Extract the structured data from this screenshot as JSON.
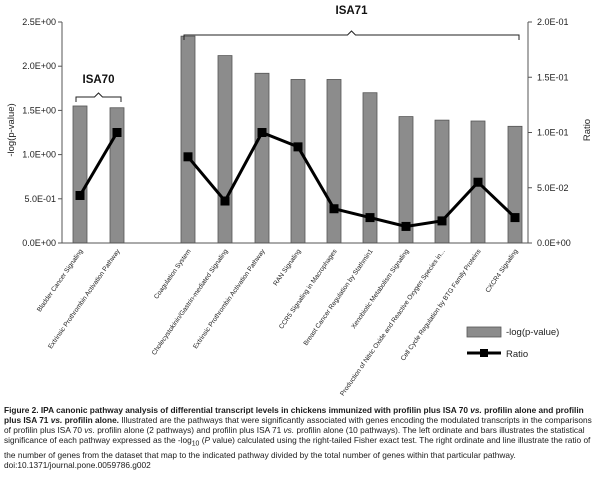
{
  "chart_data": {
    "type": "bar",
    "categories": [
      "Bladder Cancer Signaling",
      "Extrinsic Prothrombin Activation Pathway",
      "Coagulation System",
      "Cholecystokinin/Gastrin-mediated Signaling",
      "Extrinsic Prothrombin Activation Pathway",
      "RAN Signaling",
      "CCR5 Signaling in Macrophages",
      "Breast Cancer Regulation by Stathmin1",
      "Xenobiotic Metabolism Signaling",
      "Production of Nitric Oxide and Reactive Oxygen Species in...",
      "Cell Cycle Regulation by BTG Family Proteins",
      "CXCR4 Signaling"
    ],
    "series": [
      {
        "name": "-log(p-value)",
        "axis": "left",
        "type": "bar",
        "color": "#8c8c8c",
        "values": [
          1.55,
          1.53,
          2.34,
          2.12,
          1.92,
          1.85,
          1.85,
          1.7,
          1.43,
          1.39,
          1.38,
          1.32
        ]
      },
      {
        "name": "Ratio",
        "axis": "right",
        "type": "line",
        "color": "#000000",
        "values": [
          0.043,
          0.1,
          0.078,
          0.038,
          0.1,
          0.087,
          0.031,
          0.023,
          0.015,
          0.02,
          0.055,
          0.023
        ]
      }
    ],
    "groups": [
      {
        "label": "ISA70",
        "start": 0,
        "end": 1
      },
      {
        "label": "ISA71",
        "start": 2,
        "end": 11
      }
    ],
    "left_axis": {
      "label": "-log(p-value)",
      "ylim": [
        0,
        2.5
      ],
      "ticks": [
        0,
        0.5,
        1.0,
        1.5,
        2.0,
        2.5
      ],
      "tick_labels": [
        "0.0E+00",
        "5.0E-01",
        "1.0E+00",
        "1.5E+00",
        "2.0E+00",
        "2.5E+00"
      ]
    },
    "right_axis": {
      "label": "Ratio",
      "ylim": [
        0,
        0.2
      ],
      "ticks": [
        0,
        0.05,
        0.1,
        0.15,
        0.2
      ],
      "tick_labels": [
        "0.0E+00",
        "5.0E-02",
        "1.0E-01",
        "1.5E-01",
        "2.0E-01"
      ]
    },
    "legend": {
      "position": "bottom-right",
      "entries": [
        "-log(p-value)",
        "Ratio"
      ]
    },
    "grid": false
  },
  "caption": {
    "figure_label": "Figure 2. IPA canonic pathway analysis of differential transcript levels in chickens immunized with profilin plus ISA 70",
    "vs1": "vs.",
    "bold2": "profilin alone and profilin plus ISA 71",
    "vs2": "vs.",
    "bold3": "profilin alone.",
    "body1": "Illustrated are the pathways that were significantly associated with genes encoding the modulated transcripts in the comparisons of profilin plus ISA 70",
    "vs3": "vs.",
    "body2": "profilin alone (2 pathways) and profilin plus ISA 71",
    "vs4": "vs.",
    "body3": "profilin alone (10 pathways). The left ordinate and bars illustrates the statistical significance of each pathway expressed as the -log",
    "sub10": "10",
    "body4": "(",
    "p_italic": "P",
    "body5": "value) calculated using the right-tailed Fisher exact test. The right ordinate and line illustrate the ratio of the number of genes from the dataset that map to the indicated pathway divided by the total number of genes within that particular pathway.",
    "doi": "doi:10.1371/journal.pone.0059786.g002"
  }
}
